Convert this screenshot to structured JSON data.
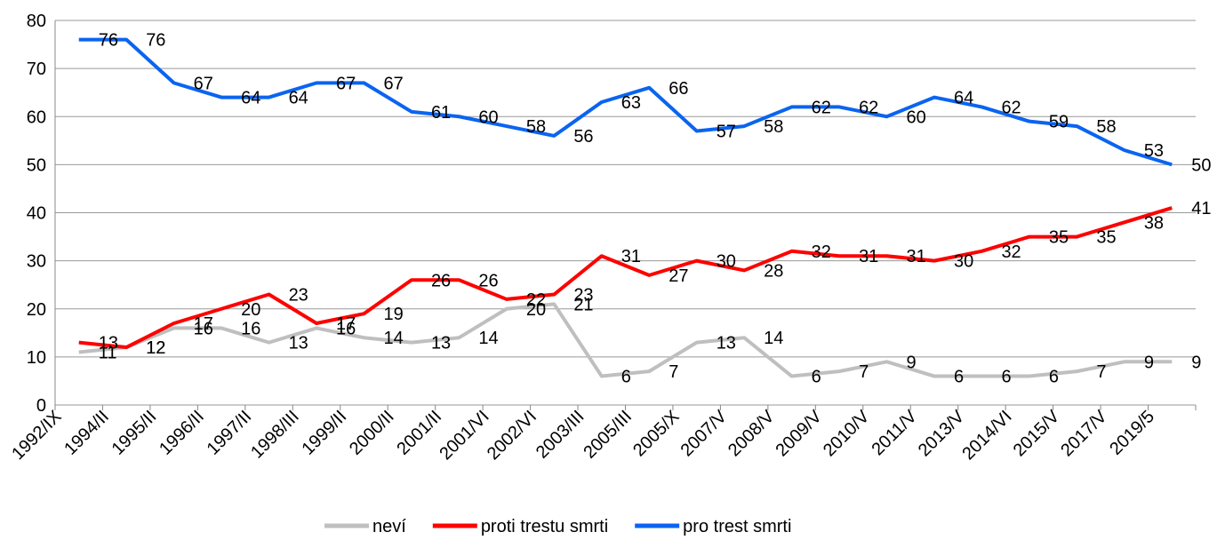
{
  "chart_data": {
    "type": "line",
    "categories": [
      "1992/IX",
      "1994/II",
      "1995/II",
      "1996/II",
      "1997/II",
      "1998/III",
      "1999/II",
      "2000/II",
      "2001/II",
      "2001/VI",
      "2002/VI",
      "2003/III",
      "2005/III",
      "2005/X",
      "2007/V",
      "2008/V",
      "2009/V",
      "2010/V",
      "2011/V",
      "2013/V",
      "2014/VI",
      "2015/V",
      "2017/V",
      "2019/5"
    ],
    "series": [
      {
        "name": "neví",
        "color": "#bfbfbf",
        "values": [
          11,
          12,
          16,
          16,
          13,
          16,
          14,
          13,
          14,
          20,
          21,
          6,
          7,
          13,
          14,
          6,
          7,
          9,
          6,
          6,
          6,
          7,
          9,
          9
        ]
      },
      {
        "name": "proti trestu smrti",
        "color": "#ff0000",
        "values": [
          13,
          12,
          17,
          20,
          23,
          17,
          19,
          26,
          26,
          22,
          23,
          31,
          27,
          30,
          28,
          32,
          31,
          31,
          30,
          32,
          35,
          35,
          38,
          41
        ]
      },
      {
        "name": "pro trest smrti",
        "color": "#0a64f0",
        "values": [
          76,
          76,
          67,
          64,
          64,
          67,
          67,
          61,
          60,
          58,
          56,
          63,
          66,
          57,
          58,
          62,
          62,
          60,
          64,
          62,
          59,
          58,
          53,
          50
        ]
      }
    ],
    "ylim": [
      0,
      80
    ],
    "yticks": [
      0,
      10,
      20,
      30,
      40,
      50,
      60,
      70,
      80
    ],
    "grid": true,
    "legend": "bottom"
  }
}
